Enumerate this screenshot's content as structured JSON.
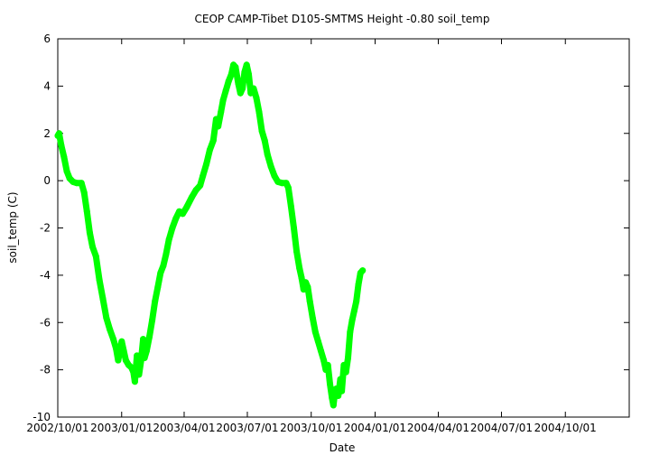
{
  "chart_data": {
    "type": "line",
    "title": "CEOP CAMP-Tibet D105-SMTMS Height -0.80 soil_temp",
    "xlabel": "Date",
    "ylabel": "soil_temp (C)",
    "xlim": [
      "2002-10-01",
      "2005-01-01"
    ],
    "ylim": [
      -10,
      6
    ],
    "y_ticks": [
      -10,
      -8,
      -6,
      -4,
      -2,
      0,
      2,
      4,
      6
    ],
    "x_ticks": [
      "2002-10-01",
      "2003-01-01",
      "2003-04-01",
      "2003-07-01",
      "2003-10-01",
      "2004-01-01",
      "2004-04-01",
      "2004-07-01",
      "2004-10-01"
    ],
    "x_tick_labels": [
      "2002/10/01",
      "2003/01/01",
      "2003/04/01",
      "2003/07/01",
      "2003/10/01",
      "2004/01/01",
      "2004/04/01",
      "2004/07/01",
      "2004/10/01"
    ],
    "grid": false,
    "series": [
      {
        "color": "#00ff00",
        "points": [
          [
            "2002-10-01",
            1.9
          ],
          [
            "2002-10-03",
            2.0
          ],
          [
            "2002-10-06",
            1.5
          ],
          [
            "2002-10-10",
            1.0
          ],
          [
            "2002-10-14",
            0.4
          ],
          [
            "2002-10-18",
            0.1
          ],
          [
            "2002-10-23",
            -0.05
          ],
          [
            "2002-10-28",
            -0.1
          ],
          [
            "2002-11-04",
            -0.1
          ],
          [
            "2002-11-08",
            -0.5
          ],
          [
            "2002-11-12",
            -1.3
          ],
          [
            "2002-11-16",
            -2.2
          ],
          [
            "2002-11-20",
            -2.8
          ],
          [
            "2002-11-25",
            -3.2
          ],
          [
            "2002-11-30",
            -4.2
          ],
          [
            "2002-12-05",
            -5.0
          ],
          [
            "2002-12-10",
            -5.8
          ],
          [
            "2002-12-15",
            -6.3
          ],
          [
            "2002-12-20",
            -6.7
          ],
          [
            "2002-12-24",
            -7.1
          ],
          [
            "2002-12-27",
            -7.6
          ],
          [
            "2003-01-01",
            -6.8
          ],
          [
            "2003-01-04",
            -7.2
          ],
          [
            "2003-01-07",
            -7.6
          ],
          [
            "2003-01-11",
            -7.8
          ],
          [
            "2003-01-15",
            -7.9
          ],
          [
            "2003-01-18",
            -8.1
          ],
          [
            "2003-01-20",
            -8.5
          ],
          [
            "2003-01-23",
            -7.4
          ],
          [
            "2003-01-26",
            -8.2
          ],
          [
            "2003-01-29",
            -7.6
          ],
          [
            "2003-02-01",
            -6.7
          ],
          [
            "2003-02-03",
            -7.5
          ],
          [
            "2003-02-06",
            -7.2
          ],
          [
            "2003-02-10",
            -6.6
          ],
          [
            "2003-02-14",
            -5.9
          ],
          [
            "2003-02-18",
            -5.1
          ],
          [
            "2003-02-22",
            -4.5
          ],
          [
            "2003-02-26",
            -3.9
          ],
          [
            "2003-03-02",
            -3.6
          ],
          [
            "2003-03-06",
            -3.1
          ],
          [
            "2003-03-10",
            -2.5
          ],
          [
            "2003-03-15",
            -2.0
          ],
          [
            "2003-03-20",
            -1.6
          ],
          [
            "2003-03-25",
            -1.3
          ],
          [
            "2003-03-30",
            -1.4
          ],
          [
            "2003-04-05",
            -1.1
          ],
          [
            "2003-04-12",
            -0.7
          ],
          [
            "2003-04-18",
            -0.4
          ],
          [
            "2003-04-24",
            -0.2
          ],
          [
            "2003-04-28",
            0.2
          ],
          [
            "2003-05-03",
            0.7
          ],
          [
            "2003-05-08",
            1.3
          ],
          [
            "2003-05-13",
            1.7
          ],
          [
            "2003-05-17",
            2.6
          ],
          [
            "2003-05-20",
            2.3
          ],
          [
            "2003-05-24",
            2.9
          ],
          [
            "2003-05-27",
            3.4
          ],
          [
            "2003-05-31",
            3.8
          ],
          [
            "2003-06-04",
            4.2
          ],
          [
            "2003-06-08",
            4.5
          ],
          [
            "2003-06-11",
            4.9
          ],
          [
            "2003-06-14",
            4.8
          ],
          [
            "2003-06-18",
            4.1
          ],
          [
            "2003-06-21",
            3.7
          ],
          [
            "2003-06-24",
            3.9
          ],
          [
            "2003-06-27",
            4.6
          ],
          [
            "2003-06-30",
            4.9
          ],
          [
            "2003-07-03",
            4.5
          ],
          [
            "2003-07-06",
            3.7
          ],
          [
            "2003-07-10",
            3.9
          ],
          [
            "2003-07-14",
            3.5
          ],
          [
            "2003-07-18",
            2.9
          ],
          [
            "2003-07-22",
            2.1
          ],
          [
            "2003-07-26",
            1.7
          ],
          [
            "2003-07-30",
            1.1
          ],
          [
            "2003-08-04",
            0.6
          ],
          [
            "2003-08-09",
            0.2
          ],
          [
            "2003-08-14",
            -0.05
          ],
          [
            "2003-08-20",
            -0.1
          ],
          [
            "2003-08-26",
            -0.1
          ],
          [
            "2003-08-29",
            -0.3
          ],
          [
            "2003-09-02",
            -1.1
          ],
          [
            "2003-09-06",
            -2.0
          ],
          [
            "2003-09-10",
            -3.0
          ],
          [
            "2003-09-14",
            -3.7
          ],
          [
            "2003-09-17",
            -4.1
          ],
          [
            "2003-09-20",
            -4.6
          ],
          [
            "2003-09-23",
            -4.3
          ],
          [
            "2003-09-26",
            -4.5
          ],
          [
            "2003-09-29",
            -5.1
          ],
          [
            "2003-10-03",
            -5.8
          ],
          [
            "2003-10-07",
            -6.4
          ],
          [
            "2003-10-11",
            -6.8
          ],
          [
            "2003-10-15",
            -7.2
          ],
          [
            "2003-10-19",
            -7.6
          ],
          [
            "2003-10-22",
            -8.0
          ],
          [
            "2003-10-25",
            -7.8
          ],
          [
            "2003-10-28",
            -8.6
          ],
          [
            "2003-10-31",
            -9.2
          ],
          [
            "2003-11-02",
            -9.5
          ],
          [
            "2003-11-04",
            -9.0
          ],
          [
            "2003-11-06",
            -8.8
          ],
          [
            "2003-11-09",
            -9.1
          ],
          [
            "2003-11-12",
            -8.4
          ],
          [
            "2003-11-14",
            -8.9
          ],
          [
            "2003-11-17",
            -7.8
          ],
          [
            "2003-11-20",
            -8.1
          ],
          [
            "2003-11-23",
            -7.5
          ],
          [
            "2003-11-26",
            -6.4
          ],
          [
            "2003-11-29",
            -5.9
          ],
          [
            "2003-12-02",
            -5.5
          ],
          [
            "2003-12-05",
            -5.1
          ],
          [
            "2003-12-08",
            -4.4
          ],
          [
            "2003-12-11",
            -3.9
          ],
          [
            "2003-12-14",
            -3.8
          ]
        ]
      }
    ]
  }
}
